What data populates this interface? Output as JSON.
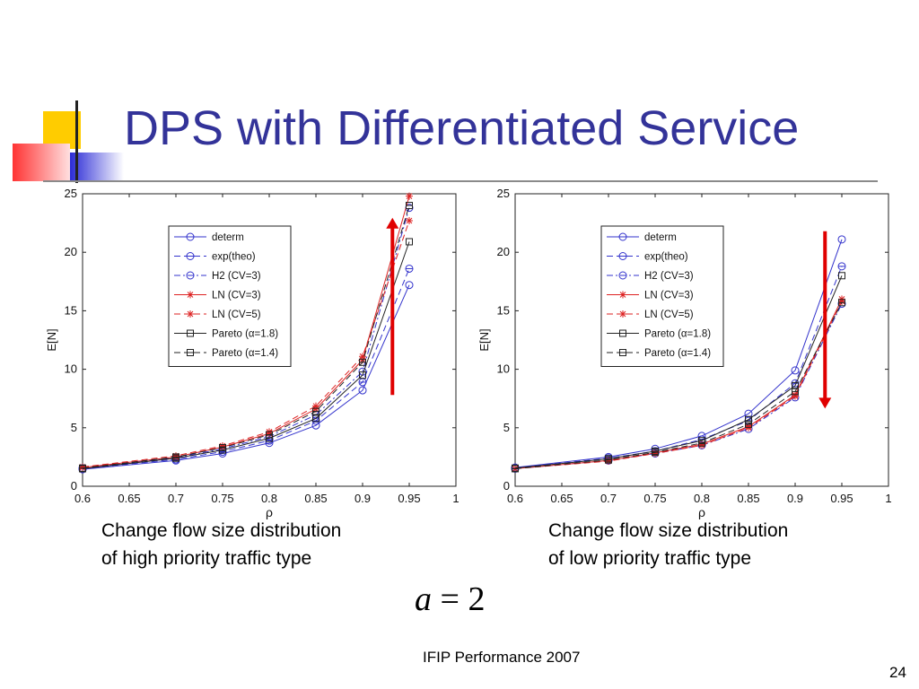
{
  "slide": {
    "title": "DPS with Differentiated Service",
    "caption_left_line1": "Change flow size distribution",
    "caption_left_line2": "of high priority traffic type",
    "caption_right_line1": "Change flow size distribution",
    "caption_right_line2": "of low priority traffic type",
    "formula_var": "a",
    "formula_eq": "=",
    "formula_val": "2",
    "footer": "IFIP Performance 2007",
    "page_number": "24"
  },
  "colors": {
    "title": "#333399",
    "arrow": "#e00000",
    "blue": "#3333cc",
    "red": "#dd2222",
    "black": "#222222"
  },
  "chart_data": [
    {
      "type": "line",
      "xlabel": "ρ",
      "ylabel": "E[N]",
      "xlim": [
        0.6,
        1.0
      ],
      "ylim": [
        0,
        25
      ],
      "xticks": [
        "0.6",
        "0.65",
        "0.7",
        "0.75",
        "0.8",
        "0.85",
        "0.9",
        "0.95",
        "1"
      ],
      "yticks": [
        "0",
        "5",
        "10",
        "15",
        "20",
        "25"
      ],
      "legend_position": "top-left",
      "annotation_arrow": "up",
      "x": [
        0.6,
        0.7,
        0.75,
        0.8,
        0.85,
        0.9,
        0.95
      ],
      "series": [
        {
          "name": "determ",
          "color": "blue",
          "dash": "solid",
          "marker": "circle",
          "values": [
            1.45,
            2.2,
            2.8,
            3.7,
            5.2,
            8.2,
            17.2
          ]
        },
        {
          "name": "exp(theo)",
          "color": "blue",
          "dash": "dashed",
          "marker": "circle-bar",
          "values": [
            1.5,
            2.3,
            2.95,
            3.9,
            5.6,
            8.9,
            18.6
          ]
        },
        {
          "name": "H2 (CV=3)",
          "color": "blue",
          "dash": "dashdot",
          "marker": "circle",
          "values": [
            1.55,
            2.45,
            3.2,
            4.25,
            6.1,
            9.8,
            23.8
          ]
        },
        {
          "name": "LN (CV=3)",
          "color": "red",
          "dash": "solid",
          "marker": "star",
          "values": [
            1.6,
            2.5,
            3.35,
            4.5,
            6.6,
            10.8,
            24.8
          ]
        },
        {
          "name": "LN (CV=5)",
          "color": "red",
          "dash": "dashed",
          "marker": "star",
          "values": [
            1.65,
            2.6,
            3.45,
            4.65,
            6.85,
            11.1,
            22.7
          ]
        },
        {
          "name": "Pareto (α=1.8)",
          "color": "black",
          "dash": "solid",
          "marker": "square",
          "values": [
            1.5,
            2.4,
            3.1,
            4.1,
            5.8,
            9.5,
            20.9
          ]
        },
        {
          "name": "Pareto (α=1.4)",
          "color": "black",
          "dash": "dashed",
          "marker": "square-bar",
          "values": [
            1.55,
            2.5,
            3.3,
            4.4,
            6.4,
            10.6,
            24.0
          ]
        }
      ]
    },
    {
      "type": "line",
      "xlabel": "ρ",
      "ylabel": "E[N]",
      "xlim": [
        0.6,
        1.0
      ],
      "ylim": [
        0,
        25
      ],
      "xticks": [
        "0.6",
        "0.65",
        "0.7",
        "0.75",
        "0.8",
        "0.85",
        "0.9",
        "0.95",
        "1"
      ],
      "yticks": [
        "0",
        "5",
        "10",
        "15",
        "20",
        "25"
      ],
      "legend_position": "top-left",
      "annotation_arrow": "down",
      "x": [
        0.6,
        0.7,
        0.75,
        0.8,
        0.85,
        0.9,
        0.95
      ],
      "series": [
        {
          "name": "determ",
          "color": "blue",
          "dash": "solid",
          "marker": "circle",
          "values": [
            1.6,
            2.5,
            3.2,
            4.3,
            6.2,
            9.9,
            21.1
          ]
        },
        {
          "name": "exp(theo)",
          "color": "blue",
          "dash": "dashed",
          "marker": "circle-bar",
          "values": [
            1.55,
            2.4,
            3.0,
            4.0,
            5.6,
            8.8,
            18.8
          ]
        },
        {
          "name": "H2 (CV=3)",
          "color": "blue",
          "dash": "dashdot",
          "marker": "circle",
          "values": [
            1.5,
            2.2,
            2.8,
            3.5,
            4.9,
            7.6,
            15.6
          ]
        },
        {
          "name": "LN (CV=3)",
          "color": "red",
          "dash": "solid",
          "marker": "star",
          "values": [
            1.5,
            2.2,
            2.85,
            3.6,
            5.1,
            7.8,
            16.0
          ]
        },
        {
          "name": "LN (CV=5)",
          "color": "red",
          "dash": "dashed",
          "marker": "star",
          "values": [
            1.5,
            2.15,
            2.8,
            3.5,
            5.0,
            7.7,
            15.8
          ]
        },
        {
          "name": "Pareto (α=1.8)",
          "color": "black",
          "dash": "solid",
          "marker": "square",
          "values": [
            1.55,
            2.35,
            3.0,
            3.9,
            5.7,
            8.6,
            18.0
          ]
        },
        {
          "name": "Pareto (α=1.4)",
          "color": "black",
          "dash": "dashed",
          "marker": "square-bar",
          "values": [
            1.5,
            2.25,
            2.9,
            3.7,
            5.3,
            8.1,
            15.7
          ]
        }
      ]
    }
  ]
}
